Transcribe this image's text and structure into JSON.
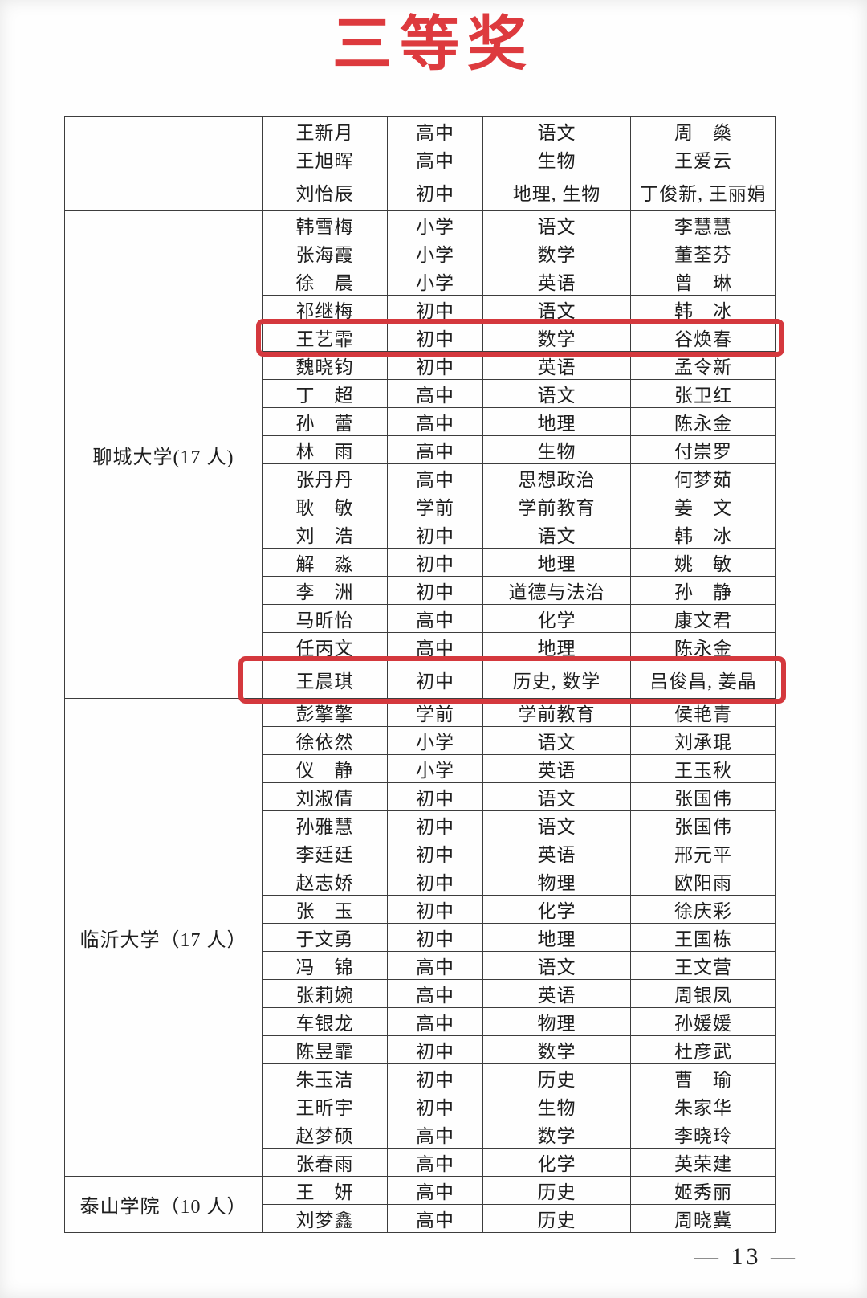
{
  "page": {
    "title": "三等奖",
    "title_color": "#dd3a3e",
    "highlight_color": "#d4383d",
    "page_number": "— 13 —"
  },
  "table": {
    "columns": [
      "university",
      "name",
      "level",
      "subject",
      "advisor"
    ],
    "sections": [
      {
        "university": "",
        "rows": [
          {
            "name": "王新月",
            "level": "高中",
            "subject": "语文",
            "advisor": "周　燊",
            "highlight": false
          },
          {
            "name": "王旭晖",
            "level": "高中",
            "subject": "生物",
            "advisor": "王爱云",
            "highlight": false
          },
          {
            "name": "刘怡辰",
            "level": "初中",
            "subject": "地理, 生物",
            "advisor": "丁俊新, 王丽娟",
            "highlight": false
          }
        ]
      },
      {
        "university": "聊城大学(17 人)",
        "rows": [
          {
            "name": "韩雪梅",
            "level": "小学",
            "subject": "语文",
            "advisor": "李慧慧",
            "highlight": false
          },
          {
            "name": "张海霞",
            "level": "小学",
            "subject": "数学",
            "advisor": "董荃芬",
            "highlight": false
          },
          {
            "name": "徐　晨",
            "level": "小学",
            "subject": "英语",
            "advisor": "曾　琳",
            "highlight": false
          },
          {
            "name": "祁继梅",
            "level": "初中",
            "subject": "语文",
            "advisor": "韩　冰",
            "highlight": false
          },
          {
            "name": "王艺霏",
            "level": "初中",
            "subject": "数学",
            "advisor": "谷焕春",
            "highlight": true
          },
          {
            "name": "魏晓钧",
            "level": "初中",
            "subject": "英语",
            "advisor": "孟令新",
            "highlight": false
          },
          {
            "name": "丁　超",
            "level": "高中",
            "subject": "语文",
            "advisor": "张卫红",
            "highlight": false
          },
          {
            "name": "孙　蕾",
            "level": "高中",
            "subject": "地理",
            "advisor": "陈永金",
            "highlight": false
          },
          {
            "name": "林　雨",
            "level": "高中",
            "subject": "生物",
            "advisor": "付崇罗",
            "highlight": false
          },
          {
            "name": "张丹丹",
            "level": "高中",
            "subject": "思想政治",
            "advisor": "何梦茹",
            "highlight": false
          },
          {
            "name": "耿　敏",
            "level": "学前",
            "subject": "学前教育",
            "advisor": "姜　文",
            "highlight": false
          },
          {
            "name": "刘　浩",
            "level": "初中",
            "subject": "语文",
            "advisor": "韩　冰",
            "highlight": false
          },
          {
            "name": "解　淼",
            "level": "初中",
            "subject": "地理",
            "advisor": "姚　敏",
            "highlight": false
          },
          {
            "name": "李　洲",
            "level": "初中",
            "subject": "道德与法治",
            "advisor": "孙　静",
            "highlight": false
          },
          {
            "name": "马昕怡",
            "level": "高中",
            "subject": "化学",
            "advisor": "康文君",
            "highlight": false
          },
          {
            "name": "任丙文",
            "level": "高中",
            "subject": "地理",
            "advisor": "陈永金",
            "highlight": false
          },
          {
            "name": "王晨琪",
            "level": "初中",
            "subject": "历史, 数学",
            "advisor": "吕俊昌, 姜晶",
            "highlight": true
          }
        ]
      },
      {
        "university": "临沂大学（17 人）",
        "rows": [
          {
            "name": "彭擎擎",
            "level": "学前",
            "subject": "学前教育",
            "advisor": "侯艳青",
            "highlight": false
          },
          {
            "name": "徐依然",
            "level": "小学",
            "subject": "语文",
            "advisor": "刘承琨",
            "highlight": false
          },
          {
            "name": "仪　静",
            "level": "小学",
            "subject": "英语",
            "advisor": "王玉秋",
            "highlight": false
          },
          {
            "name": "刘淑倩",
            "level": "初中",
            "subject": "语文",
            "advisor": "张国伟",
            "highlight": false
          },
          {
            "name": "孙雅慧",
            "level": "初中",
            "subject": "语文",
            "advisor": "张国伟",
            "highlight": false
          },
          {
            "name": "李廷廷",
            "level": "初中",
            "subject": "英语",
            "advisor": "邢元平",
            "highlight": false
          },
          {
            "name": "赵志娇",
            "level": "初中",
            "subject": "物理",
            "advisor": "欧阳雨",
            "highlight": false
          },
          {
            "name": "张　玉",
            "level": "初中",
            "subject": "化学",
            "advisor": "徐庆彩",
            "highlight": false
          },
          {
            "name": "于文勇",
            "level": "初中",
            "subject": "地理",
            "advisor": "王国栋",
            "highlight": false
          },
          {
            "name": "冯　锦",
            "level": "高中",
            "subject": "语文",
            "advisor": "王文营",
            "highlight": false
          },
          {
            "name": "张莉婉",
            "level": "高中",
            "subject": "英语",
            "advisor": "周银凤",
            "highlight": false
          },
          {
            "name": "车银龙",
            "level": "高中",
            "subject": "物理",
            "advisor": "孙媛媛",
            "highlight": false
          },
          {
            "name": "陈昱霏",
            "level": "初中",
            "subject": "数学",
            "advisor": "杜彦武",
            "highlight": false
          },
          {
            "name": "朱玉洁",
            "level": "初中",
            "subject": "历史",
            "advisor": "曹　瑜",
            "highlight": false
          },
          {
            "name": "王昕宇",
            "level": "初中",
            "subject": "生物",
            "advisor": "朱家华",
            "highlight": false
          },
          {
            "name": "赵梦硕",
            "level": "高中",
            "subject": "数学",
            "advisor": "李晓玲",
            "highlight": false
          },
          {
            "name": "张春雨",
            "level": "高中",
            "subject": "化学",
            "advisor": "英荣建",
            "highlight": false
          }
        ]
      },
      {
        "university": "泰山学院（10 人）",
        "rows": [
          {
            "name": "王　妍",
            "level": "高中",
            "subject": "历史",
            "advisor": "姬秀丽",
            "highlight": false
          },
          {
            "name": "刘梦鑫",
            "level": "高中",
            "subject": "历史",
            "advisor": "周晓冀",
            "highlight": false
          }
        ]
      }
    ]
  }
}
